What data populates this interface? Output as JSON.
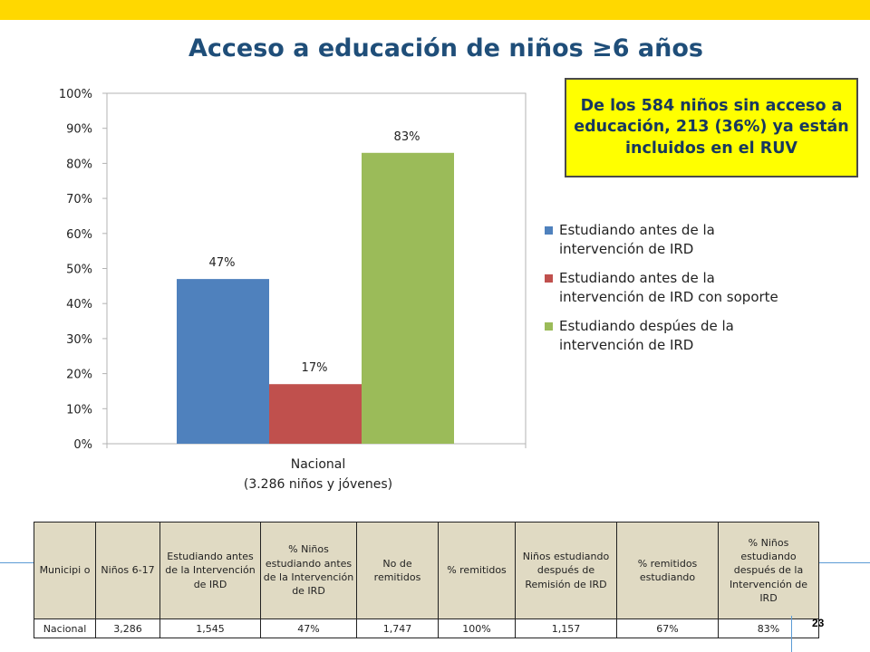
{
  "slide": {
    "title": "Acceso a educación de niños ≥6 años",
    "page_number": "23",
    "colors": {
      "top_bar": "#ffd800",
      "title": "#1f4e79",
      "callout_bg": "#ffff00",
      "callout_text": "#17375e",
      "table_header_bg": "#e0dac3"
    }
  },
  "callout": {
    "text": "De los 584 niños sin acceso a educación, 213 (36%) ya están incluidos en el RUV"
  },
  "chart_data": {
    "type": "bar",
    "categories": [
      "Nacional\n(3.286 niños y jóvenes)"
    ],
    "category_lines": [
      "Nacional",
      "(3.286 niños y jóvenes)"
    ],
    "series": [
      {
        "name": "Estudiando antes  de la intervención de  IRD",
        "values": [
          47
        ],
        "label": "47%",
        "color": "#4f81bd"
      },
      {
        "name": "Estudiando antes  de la intervención de  IRD con soporte",
        "values": [
          17
        ],
        "label": "17%",
        "color": "#c0504d"
      },
      {
        "name": "Estudiando despúes  de la intervención de  IRD",
        "values": [
          83
        ],
        "label": "83%",
        "color": "#9bbb59"
      }
    ],
    "ylim": [
      0,
      100
    ],
    "yticks": [
      "0%",
      "10%",
      "20%",
      "30%",
      "40%",
      "50%",
      "60%",
      "70%",
      "80%",
      "90%",
      "100%"
    ],
    "grid": false,
    "legend_position": "right"
  },
  "legend": [
    {
      "lines": [
        "Estudiando antes  de la",
        "intervención de  IRD"
      ],
      "color": "#4f81bd"
    },
    {
      "lines": [
        "Estudiando antes  de la",
        "intervención de  IRD con soporte"
      ],
      "color": "#c0504d"
    },
    {
      "lines": [
        "Estudiando despúes  de la",
        "intervención de  IRD"
      ],
      "color": "#9bbb59"
    }
  ],
  "table": {
    "headers": [
      "Municipi o",
      "Niños 6-17",
      "Estudiando antes de la Intervención de IRD",
      "% Niños estudiando antes de la Intervención de IRD",
      "No de remitidos",
      "% remitidos",
      "Niños estudiando después de Remisión  de IRD",
      "% remitidos estudiando",
      "% Niños estudiando después de la Intervención de IRD"
    ],
    "rows": [
      [
        "Nacional",
        "3,286",
        "1,545",
        "47%",
        "1,747",
        "100%",
        "1,157",
        "67%",
        "83%"
      ]
    ]
  }
}
